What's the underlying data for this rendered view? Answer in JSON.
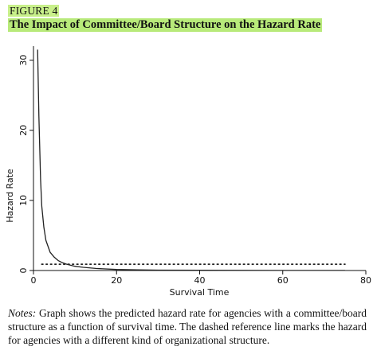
{
  "figure": {
    "label": "FIGURE 4",
    "title": "The Impact of Committee/Board Structure on the Hazard Rate"
  },
  "notes": {
    "lead": "Notes:",
    "text": " Graph shows the predicted hazard rate for agencies with a committee/board structure as a function of survival time. The dashed reference line marks the hazard for agencies with a different kind of organizational structure."
  },
  "colors": {
    "highlight": "#b8ea7a",
    "line": "#222222",
    "axis": "#111111"
  },
  "chart_data": {
    "type": "line",
    "title": "",
    "xlabel": "Survival Time",
    "ylabel": "Hazard Rate",
    "xlim": [
      0,
      80
    ],
    "ylim": [
      0,
      32
    ],
    "xticks": [
      0,
      20,
      40,
      60,
      80
    ],
    "yticks": [
      0,
      10,
      20,
      30
    ],
    "grid": false,
    "series": [
      {
        "style": "solid",
        "x": [
          1,
          1.3,
          1.7,
          2,
          2.5,
          3,
          4,
          5,
          6,
          7,
          8,
          10,
          12,
          15,
          20,
          25,
          30,
          40,
          50,
          60,
          70,
          75
        ],
        "y": [
          31.5,
          22,
          13,
          9.2,
          6.2,
          4.3,
          2.6,
          1.9,
          1.4,
          1.1,
          0.9,
          0.6,
          0.45,
          0.3,
          0.15,
          0.1,
          0.06,
          0.03,
          0.02,
          0.01,
          0.01,
          0.01
        ]
      },
      {
        "style": "dotted",
        "x": [
          2,
          75
        ],
        "y": [
          0.9,
          0.9
        ]
      }
    ]
  }
}
